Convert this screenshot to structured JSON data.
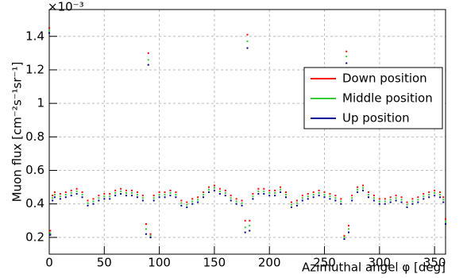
{
  "chart_data": {
    "type": "scatter",
    "y_multiplier": "×10⁻³",
    "xlabel": "Azimuthal angel φ [deg]",
    "ylabel": "Muon flux [cm⁻²s⁻¹sr⁻¹]",
    "xlim": [
      0,
      360
    ],
    "ylim": [
      0.1,
      1.56
    ],
    "xticks": [
      0,
      50,
      100,
      150,
      200,
      250,
      300,
      350
    ],
    "yticks": [
      0.2,
      0.4,
      0.6,
      0.8,
      1,
      1.2,
      1.4
    ],
    "grid": true,
    "legend": "upper right",
    "x": [
      0,
      1,
      3,
      5,
      10,
      15,
      20,
      25,
      30,
      35,
      40,
      45,
      50,
      55,
      60,
      65,
      70,
      75,
      80,
      85,
      88,
      90,
      92,
      95,
      100,
      105,
      110,
      115,
      120,
      125,
      130,
      135,
      140,
      145,
      150,
      155,
      160,
      165,
      170,
      175,
      178,
      180,
      182,
      185,
      190,
      195,
      200,
      205,
      210,
      215,
      220,
      225,
      230,
      235,
      240,
      245,
      250,
      255,
      260,
      265,
      268,
      270,
      272,
      275,
      280,
      285,
      290,
      295,
      300,
      305,
      310,
      315,
      320,
      325,
      330,
      335,
      340,
      345,
      350,
      355,
      358,
      360
    ],
    "series": [
      {
        "name": "Down position",
        "color": "#ff0000",
        "values": [
          1.45,
          0.24,
          0.45,
          0.47,
          0.46,
          0.47,
          0.48,
          0.49,
          0.47,
          0.42,
          0.43,
          0.45,
          0.46,
          0.46,
          0.48,
          0.49,
          0.48,
          0.48,
          0.47,
          0.45,
          0.28,
          1.3,
          0.22,
          0.45,
          0.47,
          0.47,
          0.48,
          0.47,
          0.42,
          0.41,
          0.43,
          0.44,
          0.47,
          0.5,
          0.51,
          0.49,
          0.48,
          0.45,
          0.43,
          0.42,
          0.3,
          1.41,
          0.3,
          0.46,
          0.49,
          0.49,
          0.48,
          0.48,
          0.5,
          0.47,
          0.41,
          0.42,
          0.45,
          0.46,
          0.47,
          0.48,
          0.47,
          0.46,
          0.45,
          0.43,
          0.21,
          1.31,
          0.27,
          0.45,
          0.5,
          0.51,
          0.47,
          0.45,
          0.43,
          0.43,
          0.44,
          0.45,
          0.44,
          0.41,
          0.43,
          0.44,
          0.46,
          0.47,
          0.48,
          0.47,
          0.44,
          0.31
        ]
      },
      {
        "name": "Middle position",
        "color": "#33cc33",
        "values": [
          1.435,
          0.225,
          0.435,
          0.455,
          0.445,
          0.455,
          0.465,
          0.475,
          0.455,
          0.405,
          0.415,
          0.435,
          0.445,
          0.445,
          0.465,
          0.475,
          0.465,
          0.465,
          0.455,
          0.435,
          0.25,
          1.26,
          0.21,
          0.435,
          0.455,
          0.455,
          0.465,
          0.455,
          0.405,
          0.395,
          0.415,
          0.425,
          0.455,
          0.485,
          0.495,
          0.475,
          0.465,
          0.435,
          0.415,
          0.405,
          0.26,
          1.37,
          0.27,
          0.445,
          0.475,
          0.475,
          0.465,
          0.465,
          0.485,
          0.455,
          0.395,
          0.405,
          0.435,
          0.445,
          0.455,
          0.465,
          0.455,
          0.445,
          0.435,
          0.415,
          0.2,
          1.28,
          0.25,
          0.435,
          0.485,
          0.495,
          0.455,
          0.435,
          0.415,
          0.415,
          0.425,
          0.435,
          0.425,
          0.395,
          0.415,
          0.425,
          0.445,
          0.455,
          0.465,
          0.455,
          0.425,
          0.295
        ]
      },
      {
        "name": "Up position",
        "color": "#000099",
        "values": [
          1.42,
          0.215,
          0.42,
          0.44,
          0.43,
          0.44,
          0.45,
          0.46,
          0.44,
          0.39,
          0.4,
          0.42,
          0.43,
          0.43,
          0.45,
          0.46,
          0.45,
          0.45,
          0.44,
          0.42,
          0.22,
          1.23,
          0.2,
          0.42,
          0.44,
          0.44,
          0.45,
          0.44,
          0.39,
          0.38,
          0.4,
          0.41,
          0.44,
          0.47,
          0.48,
          0.46,
          0.45,
          0.42,
          0.4,
          0.39,
          0.23,
          1.33,
          0.24,
          0.43,
          0.46,
          0.46,
          0.45,
          0.45,
          0.47,
          0.44,
          0.38,
          0.39,
          0.42,
          0.43,
          0.44,
          0.45,
          0.44,
          0.43,
          0.42,
          0.4,
          0.19,
          1.24,
          0.23,
          0.42,
          0.47,
          0.48,
          0.44,
          0.42,
          0.4,
          0.4,
          0.41,
          0.42,
          0.41,
          0.38,
          0.4,
          0.41,
          0.43,
          0.44,
          0.45,
          0.44,
          0.41,
          0.28
        ]
      }
    ]
  }
}
